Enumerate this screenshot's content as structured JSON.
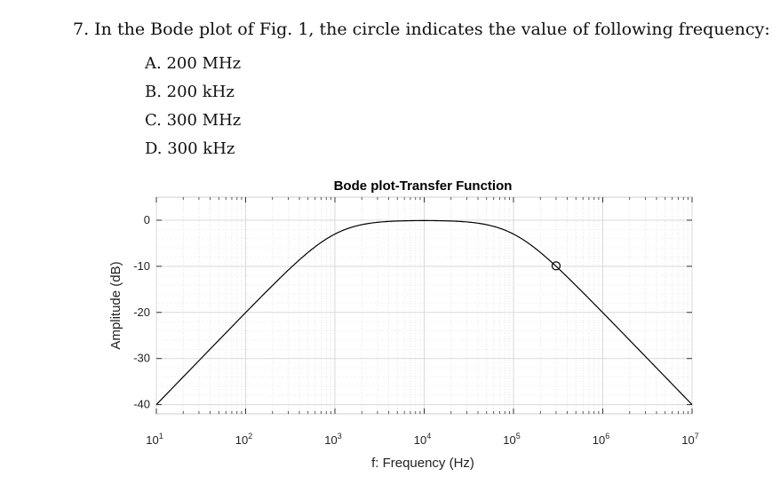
{
  "question": {
    "text": "7. In the Bode plot of Fig. 1, the circle indicates the value of following frequency:",
    "options": [
      "A. 200 MHz",
      "B. 200 kHz",
      "C. 300 MHz",
      "D. 300 kHz"
    ]
  },
  "chart_data": {
    "type": "line",
    "title": "Bode plot-Transfer Function",
    "xlabel": "f: Frequency (Hz)",
    "ylabel": "Amplitude (dB)",
    "xscale": "log",
    "xlim": [
      10,
      10000000
    ],
    "ylim": [
      -42,
      5
    ],
    "xtick_labels": [
      {
        "base": "10",
        "exp": "1",
        "value": 10
      },
      {
        "base": "10",
        "exp": "2",
        "value": 100
      },
      {
        "base": "10",
        "exp": "3",
        "value": 1000
      },
      {
        "base": "10",
        "exp": "4",
        "value": 10000
      },
      {
        "base": "10",
        "exp": "5",
        "value": 100000
      },
      {
        "base": "10",
        "exp": "6",
        "value": 1000000
      },
      {
        "base": "10",
        "exp": "7",
        "value": 10000000
      }
    ],
    "yticks": [
      0,
      -10,
      -20,
      -30,
      -40
    ],
    "ytick_labels": [
      "0",
      "-10",
      "-20",
      "-30",
      "-40"
    ],
    "grid": true,
    "series": [
      {
        "type": "band-pass",
        "low_cutoff_hz": 1000,
        "high_cutoff_hz": 100000,
        "slope_db_per_decade": 20,
        "color": "#000000"
      }
    ],
    "marker": {
      "shape": "circle",
      "x": 300000,
      "y": -9.9
    }
  }
}
